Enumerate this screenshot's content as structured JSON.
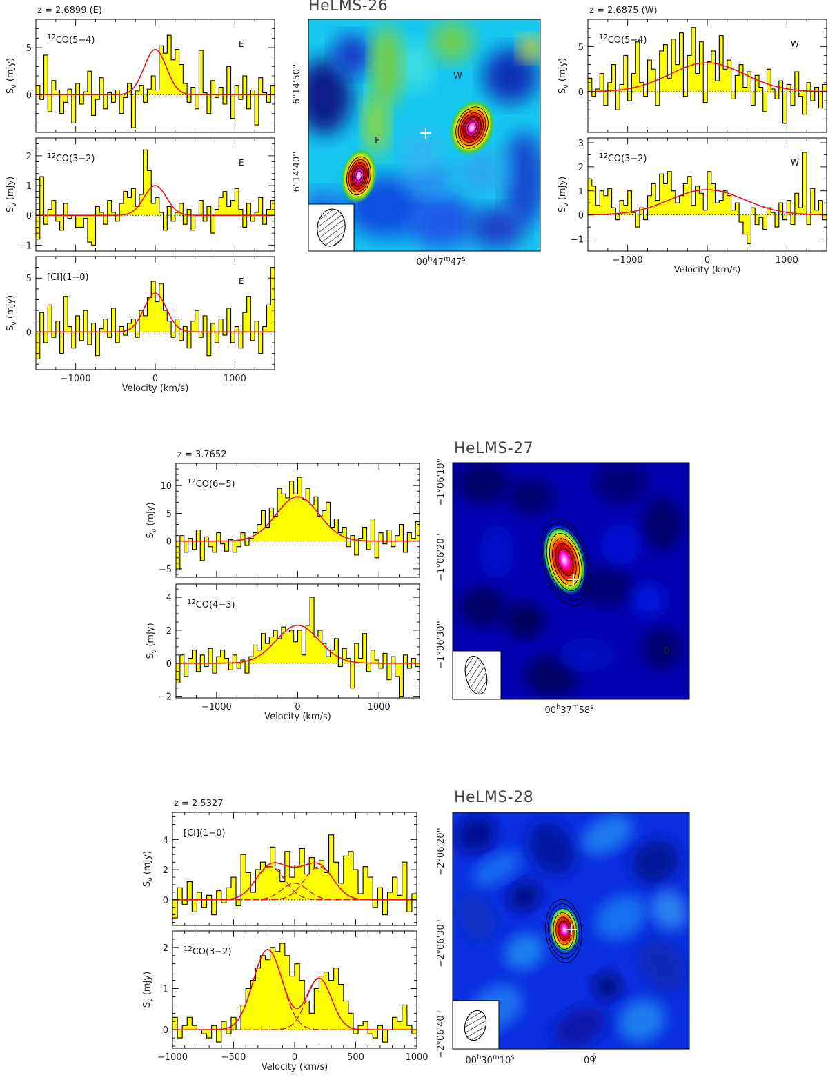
{
  "colors": {
    "fill": "#ffff00",
    "fit": "#e8101a",
    "cross": "#ffffff"
  },
  "chart_data": [
    {
      "type": "line",
      "name": "HeLMS-26 E 12CO(5-4)",
      "z": "z = 2.6899 (E)",
      "line": "12CO(5-4)",
      "lsup": "12",
      "lrest": "CO(5−4)",
      "src": "E",
      "xlim": [
        -1500,
        1500
      ],
      "ylim": [
        -4,
        8
      ],
      "yticks": [
        0,
        5
      ],
      "xticks": [
        -1000,
        0,
        1000
      ],
      "show_xticklabels": false,
      "show_xlabel": false,
      "ylabel": "S_ν (mJy)",
      "fit": [
        {
          "amp": 4.8,
          "center": 0,
          "fwhm": 330
        }
      ],
      "vstart": -1500,
      "dv": 50,
      "values": [
        1.0,
        -0.5,
        4.2,
        -1.8,
        1.5,
        0.5,
        -2.0,
        -0.8,
        0.6,
        -3.0,
        1.2,
        -1.0,
        0.3,
        2.5,
        -2.2,
        -0.5,
        1.8,
        -1.5,
        0.2,
        -0.8,
        0.5,
        -2.0,
        -0.3,
        1.2,
        -3.5,
        0.4,
        1.0,
        -0.8,
        0.6,
        2.0,
        0.5,
        5.2,
        4.4,
        6.3,
        3.7,
        4.8,
        3.2,
        1.2,
        -0.8,
        0.8,
        -1.5,
        4.7,
        0.2,
        -2.0,
        1.5,
        -0.3,
        0.8,
        -1.0,
        3.0,
        -2.5,
        1.0,
        -0.5,
        2.0,
        -1.5,
        0.5,
        -3.2,
        1.8,
        0.2,
        -0.8,
        1.0
      ]
    },
    {
      "type": "line",
      "name": "HeLMS-26 E 12CO(3-2)",
      "line": "12CO(3-2)",
      "lsup": "12",
      "lrest": "CO(3−2)",
      "src": "E",
      "xlim": [
        -1500,
        1500
      ],
      "ylim": [
        -1.2,
        2.6
      ],
      "yticks": [
        -1,
        0,
        1,
        2
      ],
      "xticks": [
        -1000,
        0,
        1000
      ],
      "show_xticklabels": false,
      "show_xlabel": false,
      "ylabel": "S_ν (mJy)",
      "fit": [
        {
          "amp": 1.0,
          "center": 0,
          "fwhm": 330
        }
      ],
      "vstart": -1500,
      "dv": 50,
      "values": [
        -0.8,
        1.3,
        -0.3,
        0.2,
        0.5,
        -0.2,
        -0.5,
        0.4,
        -0.1,
        0.0,
        -0.4,
        -0.4,
        -0.1,
        -0.9,
        -1.0,
        0.3,
        0.1,
        -0.3,
        0.5,
        0.1,
        -0.2,
        0.4,
        0.8,
        0.6,
        0.9,
        0.3,
        0.7,
        2.2,
        1.5,
        0.4,
        0.6,
        0.1,
        -0.5,
        0.3,
        -0.2,
        0.1,
        0.4,
        -0.3,
        0.2,
        -0.5,
        0.0,
        0.5,
        -0.2,
        0.3,
        -0.6,
        0.2,
        0.6,
        0.8,
        0.3,
        0.5,
        0.9,
        0.2,
        -0.4,
        0.4,
        -0.2,
        0.1,
        0.6,
        -0.3,
        0.2,
        0.5
      ]
    },
    {
      "type": "line",
      "name": "HeLMS-26 E [CI](1-0)",
      "line": "[CI](1-0)",
      "lsup": "",
      "lrest": "[CI](1−0)",
      "src": "E",
      "xlim": [
        -1500,
        1500
      ],
      "ylim": [
        -3.5,
        7
      ],
      "yticks": [
        0,
        5
      ],
      "xticks": [
        -1000,
        0,
        1000
      ],
      "xticklabels": [
        "−1000",
        "0",
        "1000"
      ],
      "show_xticklabels": true,
      "show_xlabel": true,
      "xlabel": "Velocity (km/s)",
      "ylabel": "S_ν (mJy)",
      "fit": [
        {
          "amp": 3.6,
          "center": 0,
          "fwhm": 330
        }
      ],
      "vstart": -1500,
      "dv": 50,
      "values": [
        -2.5,
        1.8,
        -1.0,
        2.5,
        -0.5,
        1.0,
        -2.0,
        3.3,
        0.5,
        -1.5,
        1.5,
        -0.8,
        2.0,
        -1.2,
        0.8,
        -2.2,
        0.3,
        1.2,
        -0.5,
        2.2,
        -1.0,
        0.5,
        -0.3,
        0.8,
        1.2,
        -0.5,
        2.0,
        1.5,
        3.2,
        4.7,
        2.8,
        4.5,
        2.0,
        1.0,
        -0.5,
        1.2,
        -0.8,
        0.5,
        -1.5,
        1.0,
        2.0,
        -0.5,
        1.5,
        -2.2,
        0.8,
        -1.0,
        1.2,
        -0.3,
        2.2,
        -1.0,
        0.5,
        -1.5,
        1.8,
        3.3,
        -0.8,
        1.0,
        -2.0,
        0.5,
        2.5,
        6.0
      ]
    },
    {
      "type": "line",
      "name": "HeLMS-26 W 12CO(5-4)",
      "z": "z = 2.6875 (W)",
      "line": "12CO(5-4)",
      "lsup": "12",
      "lrest": "CO(5−4)",
      "src": "W",
      "xlim": [
        -1500,
        1500
      ],
      "ylim": [
        -4.5,
        8
      ],
      "yticks": [
        0,
        5
      ],
      "xticks": [
        -1000,
        0,
        1000
      ],
      "show_xticklabels": false,
      "show_xlabel": false,
      "ylabel": "S_ν (mJy)",
      "fit": [
        {
          "amp": 3.2,
          "center": 0,
          "fwhm": 1100
        }
      ],
      "vstart": -1500,
      "dv": 50,
      "values": [
        1.5,
        -0.5,
        0.3,
        2.0,
        -1.5,
        1.0,
        3.0,
        -2.0,
        0.8,
        4.0,
        -1.0,
        2.0,
        5.5,
        1.0,
        -0.5,
        3.5,
        2.5,
        -1.5,
        4.5,
        5.2,
        1.5,
        5.8,
        3.0,
        6.5,
        -0.5,
        4.0,
        7.1,
        2.0,
        5.5,
        -1.2,
        3.3,
        4.5,
        1.2,
        6.2,
        2.5,
        3.5,
        -0.8,
        1.8,
        3.0,
        0.5,
        2.2,
        -1.5,
        1.8,
        0.5,
        -2.2,
        2.5,
        0.3,
        -0.8,
        1.2,
        -3.5,
        0.8,
        -1.5,
        2.2,
        -0.5,
        -2.5,
        1.0,
        -1.0,
        0.5,
        -1.8,
        0.8
      ]
    },
    {
      "type": "line",
      "name": "HeLMS-26 W 12CO(3-2)",
      "line": "12CO(3-2)",
      "lsup": "12",
      "lrest": "CO(3−2)",
      "src": "W",
      "xlim": [
        -1500,
        1500
      ],
      "ylim": [
        -1.5,
        3.2
      ],
      "yticks": [
        -1,
        0,
        1,
        2,
        3
      ],
      "xticks": [
        -1000,
        0,
        1000
      ],
      "xticklabels": [
        "−1000",
        "0",
        "1000"
      ],
      "show_xticklabels": true,
      "show_xlabel": true,
      "xlabel": "Velocity (km/s)",
      "ylabel": "S_ν (mJy)",
      "fit": [
        {
          "amp": 1.05,
          "center": 0,
          "fwhm": 1100
        }
      ],
      "vstart": -1500,
      "dv": 50,
      "values": [
        1.5,
        1.2,
        0.4,
        1.0,
        0.8,
        1.1,
        0.3,
        -0.2,
        0.6,
        0.4,
        1.0,
        0.1,
        -0.5,
        0.3,
        -0.2,
        0.8,
        1.3,
        0.6,
        1.7,
        1.3,
        1.8,
        1.0,
        0.5,
        0.8,
        1.3,
        1.6,
        0.4,
        1.2,
        0.9,
        0.2,
        1.8,
        1.3,
        0.5,
        0.6,
        1.0,
        0.8,
        0.2,
        0.5,
        -0.3,
        -0.8,
        -1.2,
        0.3,
        -0.4,
        -0.1,
        -0.6,
        0.3,
        0.1,
        -0.5,
        0.5,
        -0.2,
        0.6,
        -0.4,
        0.9,
        0.3,
        2.6,
        -0.4,
        1.1,
        0.2,
        0.6,
        -0.2
      ]
    },
    {
      "type": "line",
      "name": "HeLMS-27 12CO(6-5)",
      "z": "z = 3.7652",
      "line": "12CO(6-5)",
      "lsup": "12",
      "lrest": "CO(6−5)",
      "src": "",
      "xlim": [
        -1500,
        1500
      ],
      "ylim": [
        -6.5,
        14
      ],
      "yticks": [
        -5,
        0,
        5,
        10
      ],
      "xticks": [
        -1000,
        0,
        1000
      ],
      "show_xticklabels": false,
      "show_xlabel": false,
      "ylabel": "S_ν (mJy)",
      "fit": [
        {
          "amp": 8.0,
          "center": 0,
          "fwhm": 620
        }
      ],
      "vstart": -1500,
      "dv": 50,
      "values": [
        -5.2,
        1.0,
        -2.0,
        0.5,
        -1.5,
        2.0,
        -3.5,
        0.8,
        -1.0,
        -2.0,
        1.5,
        -0.5,
        -1.8,
        0.3,
        -2.0,
        -1.0,
        1.5,
        -0.8,
        0.5,
        1.5,
        3.0,
        5.5,
        2.5,
        6.0,
        4.5,
        9.5,
        8.5,
        7.8,
        10.8,
        8.5,
        11.5,
        7.5,
        9.5,
        6.5,
        8.0,
        4.5,
        5.5,
        7.0,
        2.5,
        4.0,
        1.5,
        2.5,
        -1.0,
        1.0,
        -2.5,
        0.5,
        2.5,
        -1.5,
        4.0,
        -3.0,
        1.5,
        -0.5,
        2.0,
        -1.0,
        1.0,
        3.0,
        -2.0,
        1.5,
        0.5,
        3.5
      ]
    },
    {
      "type": "line",
      "name": "HeLMS-27 12CO(4-3)",
      "line": "12CO(4-3)",
      "lsup": "12",
      "lrest": "CO(4−3)",
      "src": "",
      "xlim": [
        -1500,
        1500
      ],
      "ylim": [
        -2.1,
        4.8
      ],
      "yticks": [
        -2,
        0,
        2,
        4
      ],
      "xticks": [
        -1000,
        0,
        1000
      ],
      "xticklabels": [
        "−1000",
        "0",
        "1000"
      ],
      "show_xticklabels": true,
      "show_xlabel": true,
      "xlabel": "Velocity (km/s)",
      "ylabel": "S_ν (mJy)",
      "fit": [
        {
          "amp": 2.3,
          "center": 0,
          "fwhm": 620
        }
      ],
      "vstart": -1500,
      "dv": 50,
      "values": [
        -1.2,
        0.5,
        -0.8,
        0.3,
        0.8,
        -0.5,
        0.5,
        -0.2,
        0.9,
        -0.6,
        0.4,
        0.8,
        0.3,
        -0.4,
        0.5,
        -0.3,
        0.2,
        -0.6,
        0.4,
        1.1,
        0.8,
        1.8,
        1.2,
        1.6,
        2.0,
        1.5,
        2.2,
        1.9,
        2.0,
        1.3,
        2.0,
        0.5,
        2.3,
        4.0,
        1.6,
        2.0,
        1.2,
        0.4,
        0.8,
        1.5,
        -0.2,
        0.9,
        0.3,
        -1.5,
        1.2,
        0.3,
        1.8,
        -0.5,
        0.8,
        0.2,
        -0.3,
        0.6,
        -1.0,
        0.4,
        -0.8,
        -2.0,
        0.5,
        -0.3,
        0.3,
        -0.2
      ]
    },
    {
      "type": "line",
      "name": "HeLMS-28 [CI](1-0)",
      "z": "z = 2.5327",
      "line": "[CI](1-0)",
      "lsup": "",
      "lrest": "[CI](1−0)",
      "src": "",
      "xlim": [
        -1000,
        1000
      ],
      "ylim": [
        -1.7,
        5.8
      ],
      "yticks": [
        0,
        2,
        4
      ],
      "xticks": [
        -1000,
        -500,
        0,
        500,
        1000
      ],
      "show_xticklabels": false,
      "show_xlabel": false,
      "ylabel": "S_ν (mJy)",
      "fit": [
        {
          "amp": 2.2,
          "center": -200,
          "fwhm": 280
        },
        {
          "amp": 1.1,
          "center": 0,
          "fwhm": 250
        },
        {
          "amp": 2.2,
          "center": 200,
          "fwhm": 280
        }
      ],
      "vstart": -1000,
      "dv": 40,
      "values": [
        -1.2,
        0.8,
        -0.3,
        1.2,
        -0.8,
        0.5,
        -0.5,
        0.3,
        -1.0,
        0.6,
        -0.2,
        0.8,
        1.5,
        -0.4,
        3.0,
        1.8,
        0.5,
        2.0,
        2.5,
        2.2,
        3.5,
        2.0,
        1.2,
        3.2,
        1.5,
        2.3,
        3.4,
        1.7,
        2.8,
        2.1,
        2.6,
        1.8,
        4.3,
        2.5,
        1.1,
        2.9,
        3.2,
        2.0,
        0.4,
        2.2,
        1.5,
        -0.5,
        0.8,
        -1.0,
        0.5,
        1.5,
        0.3,
        2.5,
        -0.8,
        0.4
      ]
    },
    {
      "type": "line",
      "name": "HeLMS-28 12CO(3-2)",
      "line": "12CO(3-2)",
      "lsup": "12",
      "lrest": "CO(3−2)",
      "src": "",
      "xlim": [
        -1000,
        1000
      ],
      "ylim": [
        -0.45,
        2.4
      ],
      "yticks": [
        0,
        1,
        2
      ],
      "xticks": [
        -1000,
        -500,
        0,
        500,
        1000
      ],
      "xticklabels": [
        "−1000",
        "−500",
        "0",
        "500",
        "1000"
      ],
      "show_xticklabels": true,
      "show_xlabel": true,
      "xlabel": "Velocity (km/s)",
      "ylabel": "S_ν (mJy)",
      "fit": [
        {
          "amp": 1.95,
          "center": -220,
          "fwhm": 280
        },
        {
          "amp": 1.25,
          "center": 200,
          "fwhm": 240
        }
      ],
      "vstart": -1000,
      "dv": 40,
      "values": [
        0.3,
        -0.2,
        0.1,
        0.3,
        0.1,
        0.0,
        -0.1,
        -0.2,
        0.1,
        -0.3,
        0.2,
        -0.1,
        0.3,
        0.0,
        0.6,
        1.0,
        1.2,
        1.5,
        1.8,
        1.7,
        2.0,
        1.9,
        2.1,
        1.8,
        1.3,
        1.6,
        1.2,
        0.7,
        0.4,
        1.0,
        1.3,
        1.4,
        1.2,
        1.5,
        1.1,
        0.7,
        0.4,
        -0.1,
        0.1,
        0.2,
        -0.1,
        -0.2,
        0.1,
        -0.3,
        0.0,
        0.3,
        0.2,
        0.6,
        0.1,
        -0.1
      ]
    }
  ],
  "maps": [
    {
      "title": "HeLMS-26",
      "colormap": "rainbow",
      "ra_label_main": "00",
      "ra_label_parts": [
        "h",
        "47",
        "m",
        "47",
        "s"
      ],
      "dec_ticks": [
        "6°14'50''",
        "6°14'40''"
      ],
      "src_labels": [
        "W",
        "E"
      ]
    },
    {
      "title": "HeLMS-27",
      "colormap": "dark-blue",
      "ra_label_parts": [
        "h",
        "37",
        "m",
        "58",
        "s"
      ],
      "ra_label_main": "00",
      "dec_ticks": [
        "−1°06'10''",
        "−1°06'20''",
        "−1°06'30''"
      ],
      "extra_label": "0"
    },
    {
      "title": "HeLMS-28",
      "colormap": "blue",
      "ra_label_parts": [
        "h",
        "30",
        "m",
        "10",
        "s"
      ],
      "ra_label_main": "00",
      "ra_label2": "09",
      "dec_ticks": [
        "−2°06'20''",
        "−2°06'30''",
        "−2°06'40''"
      ]
    }
  ]
}
